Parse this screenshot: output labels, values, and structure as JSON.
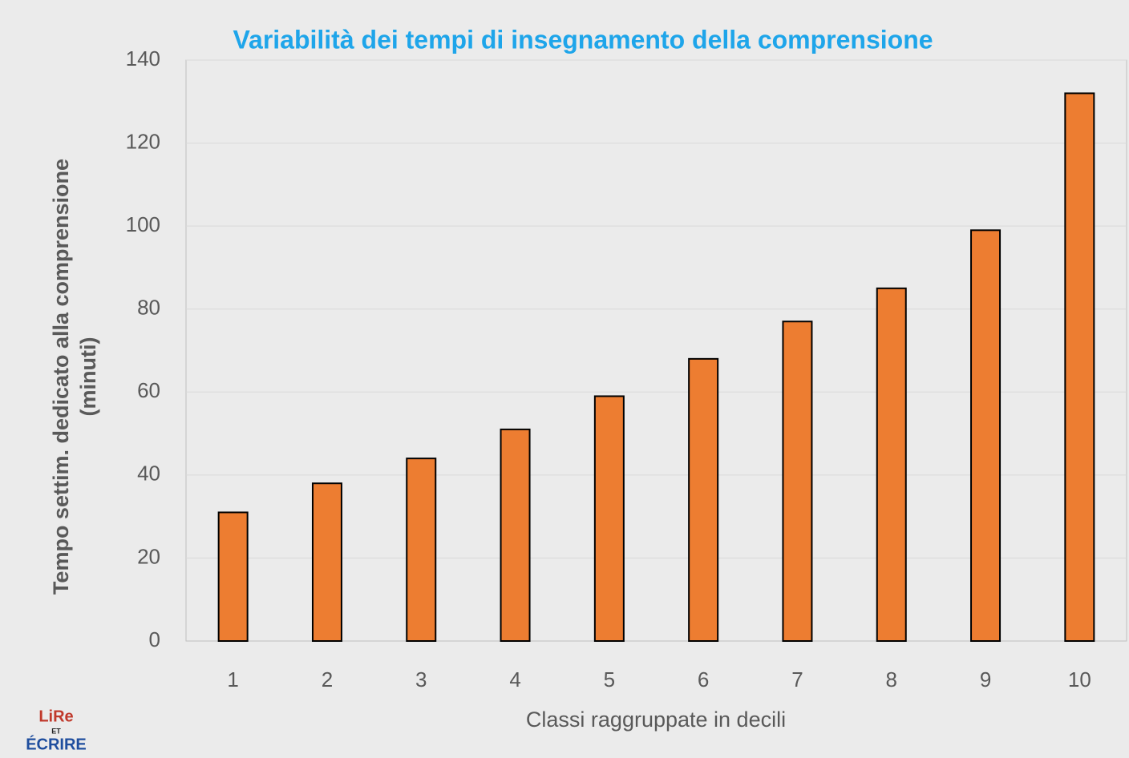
{
  "chart_data": {
    "type": "bar",
    "title": "Variabilità dei tempi di insegnamento della comprensione",
    "ylabel": [
      "Tempo settim. dedicato alla comprensione",
      "(minuti)"
    ],
    "xlabel": "Classi raggruppate in decili",
    "categories": [
      "1",
      "2",
      "3",
      "4",
      "5",
      "6",
      "7",
      "8",
      "9",
      "10"
    ],
    "values": [
      31,
      38,
      44,
      51,
      59,
      68,
      77,
      85,
      99,
      132
    ],
    "color": "#ed7d31",
    "ylim": [
      0,
      140
    ],
    "yticks": [
      0,
      20,
      40,
      60,
      80,
      100,
      120,
      140
    ],
    "grid": true
  },
  "logo": {
    "top": "LiRe",
    "middle": "ET",
    "bottom": "ÉCRIRE"
  }
}
